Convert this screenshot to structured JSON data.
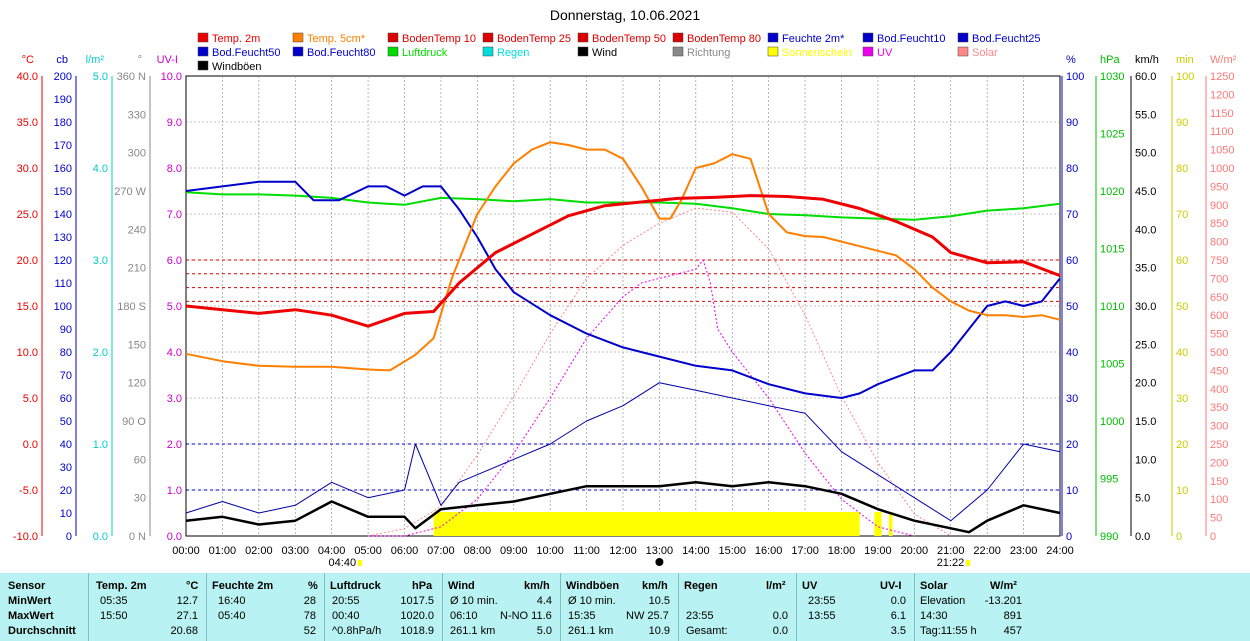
{
  "title": "Donnerstag, 10.06.2021",
  "legend": [
    {
      "label": "Temp. 2m",
      "color": "#ee0000"
    },
    {
      "label": "Temp. 5cm*",
      "color": "#ff7f00"
    },
    {
      "label": "BodenTemp 10",
      "color": "#dd0000"
    },
    {
      "label": "BodenTemp 25",
      "color": "#dd0000"
    },
    {
      "label": "BodenTemp 50",
      "color": "#dd0000"
    },
    {
      "label": "BodenTemp 80",
      "color": "#dd0000"
    },
    {
      "label": "Feuchte 2m*",
      "color": "#0000cc"
    },
    {
      "label": "Bod.Feucht10",
      "color": "#0000cc"
    },
    {
      "label": "Bod.Feucht25",
      "color": "#0000cc"
    },
    {
      "label": "Bod.Feucht50",
      "color": "#0000cc"
    },
    {
      "label": "Bod.Feucht80",
      "color": "#0000cc"
    },
    {
      "label": "Luftdruck",
      "color": "#00dd00"
    },
    {
      "label": "Regen",
      "color": "#00dddd"
    },
    {
      "label": "Wind",
      "color": "#000000"
    },
    {
      "label": "Richtung",
      "color": "#888888"
    },
    {
      "label": "Sonnenschein",
      "color": "#ffff00"
    },
    {
      "label": "UV",
      "color": "#ee00ee"
    },
    {
      "label": "Solar",
      "color": "#ff8888"
    },
    {
      "label": "Windböen",
      "color": "#000000"
    }
  ],
  "axes_units": {
    "temp": "°C",
    "cb": "cb",
    "rain": "l/m²",
    "dir": "°",
    "uv": "UV-I",
    "pct": "%",
    "hpa": "hPa",
    "kmh": "km/h",
    "min": "min",
    "solar": "W/m²"
  },
  "axis_colors": {
    "temp": "#ee0000",
    "cb": "#0000cc",
    "rain": "#00cccc",
    "dir": "#888888",
    "uv": "#cc00cc",
    "pct": "#0000cc",
    "hpa": "#00bb00",
    "kmh": "#000000",
    "min": "#cccc00",
    "solar": "#ff7777"
  },
  "axis_ticks": {
    "temp": [
      "40.0",
      "35.0",
      "30.0",
      "25.0",
      "20.0",
      "15.0",
      "10.0",
      "5.0",
      "0.0",
      "-5.0",
      "-10.0"
    ],
    "cb": [
      "200",
      "190",
      "180",
      "170",
      "160",
      "150",
      "140",
      "130",
      "120",
      "110",
      "100",
      "90",
      "80",
      "70",
      "60",
      "50",
      "40",
      "30",
      "20",
      "10",
      "0"
    ],
    "rain": [
      "5.0",
      "4.0",
      "3.0",
      "2.0",
      "1.0",
      "0.0"
    ],
    "dir": [
      "360 N",
      "330",
      "300",
      "270 W",
      "240",
      "210",
      "180 S",
      "150",
      "120",
      "90  O",
      "60",
      "30",
      "0   N"
    ],
    "uv": [
      "10.0",
      "9.0",
      "8.0",
      "7.0",
      "6.0",
      "5.0",
      "4.0",
      "3.0",
      "2.0",
      "1.0",
      "0.0"
    ],
    "pct": [
      "100",
      "90",
      "80",
      "70",
      "60",
      "50",
      "40",
      "30",
      "20",
      "10",
      "0"
    ],
    "hpa": [
      "1030",
      "1025",
      "1020",
      "1015",
      "1010",
      "1005",
      "1000",
      "995",
      "990"
    ],
    "kmh": [
      "60.0",
      "55.0",
      "50.0",
      "45.0",
      "40.0",
      "35.0",
      "30.0",
      "25.0",
      "20.0",
      "15.0",
      "10.0",
      "5.0",
      "0.0"
    ],
    "min": [
      "100",
      "90",
      "80",
      "70",
      "60",
      "50",
      "40",
      "30",
      "20",
      "10",
      "0"
    ],
    "solar": [
      "1250",
      "1200",
      "1150",
      "1100",
      "1050",
      "1000",
      "950",
      "900",
      "850",
      "800",
      "750",
      "700",
      "650",
      "600",
      "550",
      "500",
      "450",
      "400",
      "350",
      "300",
      "250",
      "200",
      "150",
      "100",
      "50",
      "0"
    ]
  },
  "x_ticks": [
    "00:00",
    "01:00",
    "02:00",
    "03:00",
    "04:00",
    "05:00",
    "06:00",
    "07:00",
    "08:00",
    "09:00",
    "10:00",
    "11:00",
    "12:00",
    "13:00",
    "14:00",
    "15:00",
    "16:00",
    "17:00",
    "18:00",
    "19:00",
    "20:00",
    "21:00",
    "22:00",
    "23:00",
    "24:00"
  ],
  "sunrise": "04:40",
  "sunset": "21:22",
  "chart_data": {
    "type": "line",
    "title": "Donnerstag, 10.06.2021",
    "x_unit": "hour",
    "series": [
      {
        "name": "Temp. 2m",
        "unit": "°C",
        "x": [
          0,
          1,
          2,
          3,
          4,
          5,
          6,
          6.8,
          7.5,
          8.5,
          9.5,
          10.5,
          11.5,
          12.5,
          13.5,
          14.5,
          15.5,
          16.5,
          17.5,
          18.5,
          19.5,
          20.5,
          21,
          22,
          23,
          24
        ],
        "y": [
          15.0,
          14.6,
          14.2,
          14.6,
          14.0,
          12.8,
          14.2,
          14.4,
          17.5,
          20.8,
          22.8,
          24.8,
          25.9,
          26.3,
          26.7,
          26.8,
          27.0,
          26.9,
          26.6,
          25.6,
          24.2,
          22.5,
          20.8,
          19.7,
          19.8,
          18.3
        ]
      },
      {
        "name": "Temp. 5cm*",
        "unit": "°C",
        "x": [
          0,
          1,
          2,
          3,
          4,
          5,
          5.6,
          6.3,
          6.8,
          7.3,
          8,
          8.5,
          9,
          9.5,
          10,
          10.5,
          11,
          11.5,
          12,
          12.5,
          13,
          13.3,
          13.6,
          14,
          14.5,
          15,
          15.5,
          16,
          16.5,
          17,
          17.5,
          18,
          18.5,
          19,
          19.5,
          20,
          20.5,
          21,
          21.5,
          22,
          22.5,
          23,
          23.5,
          24
        ],
        "y": [
          9.8,
          9.0,
          8.5,
          8.4,
          8.4,
          8.1,
          8.0,
          9.7,
          11.5,
          18.0,
          25.0,
          28.0,
          30.5,
          32.0,
          32.8,
          32.5,
          32.0,
          32.0,
          31.0,
          28.0,
          24.5,
          24.5,
          26.5,
          30.0,
          30.5,
          31.5,
          31.0,
          25.0,
          23.0,
          22.6,
          22.5,
          22.0,
          21.5,
          21.0,
          20.5,
          19.0,
          17.0,
          15.5,
          14.5,
          14.0,
          14.0,
          13.8,
          14.0,
          13.5
        ]
      },
      {
        "name": "Feuchte 2m*",
        "unit": "%",
        "x": [
          0,
          1,
          2,
          3,
          3.5,
          4.2,
          5,
          5.5,
          6,
          6.5,
          7,
          7.5,
          8,
          8.5,
          9,
          10,
          11,
          12,
          13,
          14,
          15,
          16,
          17,
          18,
          18.5,
          19,
          20,
          20.5,
          21,
          22,
          22.5,
          23,
          23.5,
          24
        ],
        "y": [
          75,
          76,
          77,
          77,
          73,
          73,
          76,
          76,
          74,
          76,
          76,
          71,
          65,
          58,
          53,
          48,
          44,
          41,
          39,
          37,
          36,
          33,
          31,
          30,
          31,
          33,
          36,
          36,
          40,
          50,
          51,
          50,
          51,
          56
        ]
      },
      {
        "name": "Luftdruck",
        "unit": "hPa",
        "x": [
          0,
          1,
          2,
          3,
          4,
          5,
          6,
          7,
          8,
          9,
          10,
          11,
          12,
          13,
          14,
          15,
          16,
          17,
          18,
          19,
          20,
          21,
          22,
          23,
          24
        ],
        "y": [
          1019.9,
          1019.7,
          1019.7,
          1019.6,
          1019.4,
          1019.0,
          1018.8,
          1019.4,
          1019.3,
          1019.1,
          1019.3,
          1019.0,
          1019.0,
          1019.0,
          1018.9,
          1018.5,
          1018.0,
          1017.9,
          1017.7,
          1017.6,
          1017.5,
          1017.8,
          1018.3,
          1018.5,
          1018.9
        ]
      },
      {
        "name": "Wind",
        "unit": "km/h",
        "x": [
          0,
          1,
          2,
          3,
          4,
          5,
          6,
          6.3,
          7,
          8,
          9,
          10,
          11,
          12,
          13,
          14,
          15,
          16,
          17,
          18,
          19,
          20,
          21,
          21.5,
          22,
          23,
          24
        ],
        "y": [
          2.0,
          2.5,
          1.5,
          2.0,
          4.5,
          2.5,
          2.5,
          1.0,
          3.5,
          4.0,
          4.5,
          5.5,
          6.5,
          6.5,
          6.5,
          7.0,
          6.5,
          7.0,
          6.5,
          5.5,
          3.5,
          2.0,
          1.0,
          0.5,
          2.0,
          4.0,
          3.0
        ]
      },
      {
        "name": "Windböen",
        "unit": "km/h",
        "x": [
          0,
          1,
          2,
          3,
          4,
          5,
          6,
          6.3,
          7,
          7.5,
          8,
          9,
          10,
          11,
          12,
          13,
          14,
          15,
          16,
          17,
          18,
          19,
          20,
          21,
          22,
          23,
          24
        ],
        "y": [
          3.0,
          4.5,
          3.0,
          4.0,
          7.0,
          5.0,
          6.0,
          12.0,
          4.0,
          7.0,
          8.0,
          10.0,
          12.0,
          15.0,
          17.0,
          20.0,
          19.0,
          18.0,
          17.0,
          16.0,
          11.0,
          8.0,
          5.0,
          2.0,
          6.0,
          12.0,
          11.0
        ]
      },
      {
        "name": "UV",
        "unit": "UV-I",
        "x": [
          5,
          6,
          7,
          8,
          9,
          10,
          11,
          12,
          12.5,
          13,
          13.5,
          14,
          14.2,
          14.4,
          14.6,
          15,
          16,
          17,
          18,
          19,
          20
        ],
        "y": [
          0,
          0,
          0.2,
          0.8,
          1.8,
          3.0,
          4.3,
          5.2,
          5.5,
          5.6,
          5.7,
          5.8,
          6.0,
          5.5,
          4.5,
          4.0,
          3.0,
          1.8,
          0.8,
          0.2,
          0
        ]
      },
      {
        "name": "Solar",
        "unit": "W/m²",
        "x": [
          5,
          6,
          7,
          8,
          9,
          10,
          11,
          12,
          13,
          14,
          15,
          16,
          17,
          18,
          19,
          20,
          21
        ],
        "y": [
          0,
          20,
          80,
          220,
          380,
          550,
          700,
          790,
          850,
          891,
          880,
          780,
          600,
          380,
          200,
          60,
          0
        ]
      }
    ],
    "ylim_temp": [
      -10,
      40
    ],
    "ylim_pct": [
      0,
      100
    ],
    "ylim_hpa": [
      990,
      1030
    ],
    "ylim_kmh": [
      0,
      60
    ],
    "ylim_uv": [
      0,
      10
    ],
    "ylim_solar": [
      0,
      1250
    ],
    "sunshine_periods": [
      [
        6.8,
        18.5
      ],
      [
        18.9,
        19.1
      ],
      [
        19.3,
        19.4
      ]
    ],
    "grid": true
  },
  "summary": {
    "headers": [
      "Sensor",
      "Temp. 2m",
      "°C",
      "Feuchte 2m",
      "%",
      "Luftdruck",
      "hPa",
      "Wind",
      "km/h",
      "Windböen",
      "km/h",
      "Regen",
      "l/m²",
      "UV",
      "UV-I",
      "Solar",
      "W/m²"
    ],
    "rows": [
      {
        "label": "MinWert",
        "temp_time": "05:35",
        "temp": "12.7",
        "hum_time": "16:40",
        "hum": "28",
        "press_time": "20:55",
        "press": "1017.5",
        "wind_lbl": "Ø 10 min.",
        "wind": "4.4",
        "gust_lbl": "Ø 10 min.",
        "gust": "10.5",
        "rain_lbl": "",
        "rain": "",
        "uv_time": "23:55",
        "uv": "0.0",
        "solar_lbl": "Elevation",
        "solar": "-13.201"
      },
      {
        "label": "MaxWert",
        "temp_time": "15:50",
        "temp": "27.1",
        "hum_time": "05:40",
        "hum": "78",
        "press_time": "00:40",
        "press": "1020.0",
        "wind_lbl": "06:10",
        "wind_dir": "N-NO 11.6",
        "wind": "",
        "gust_lbl": "15:35",
        "gust_dir": "NW 25.7",
        "gust": "",
        "rain_lbl": "23:55",
        "rain": "0.0",
        "uv_time": "13:55",
        "uv": "6.1",
        "solar_lbl": "14:30",
        "solar": "891"
      },
      {
        "label": "Durchschnitt",
        "temp_time": "",
        "temp": "20.68",
        "hum_time": "",
        "hum": "52",
        "press_time": "^0.8hPa/h",
        "press": "1018.9",
        "wind_lbl": "261.1 km",
        "wind": "5.0",
        "gust_lbl": "261.1 km",
        "gust": "10.9",
        "rain_lbl": "Gesamt:",
        "rain": "0.0",
        "uv_time": "",
        "uv": "3.5",
        "solar_lbl": "Tag:11:55 h",
        "solar": "457"
      }
    ]
  }
}
